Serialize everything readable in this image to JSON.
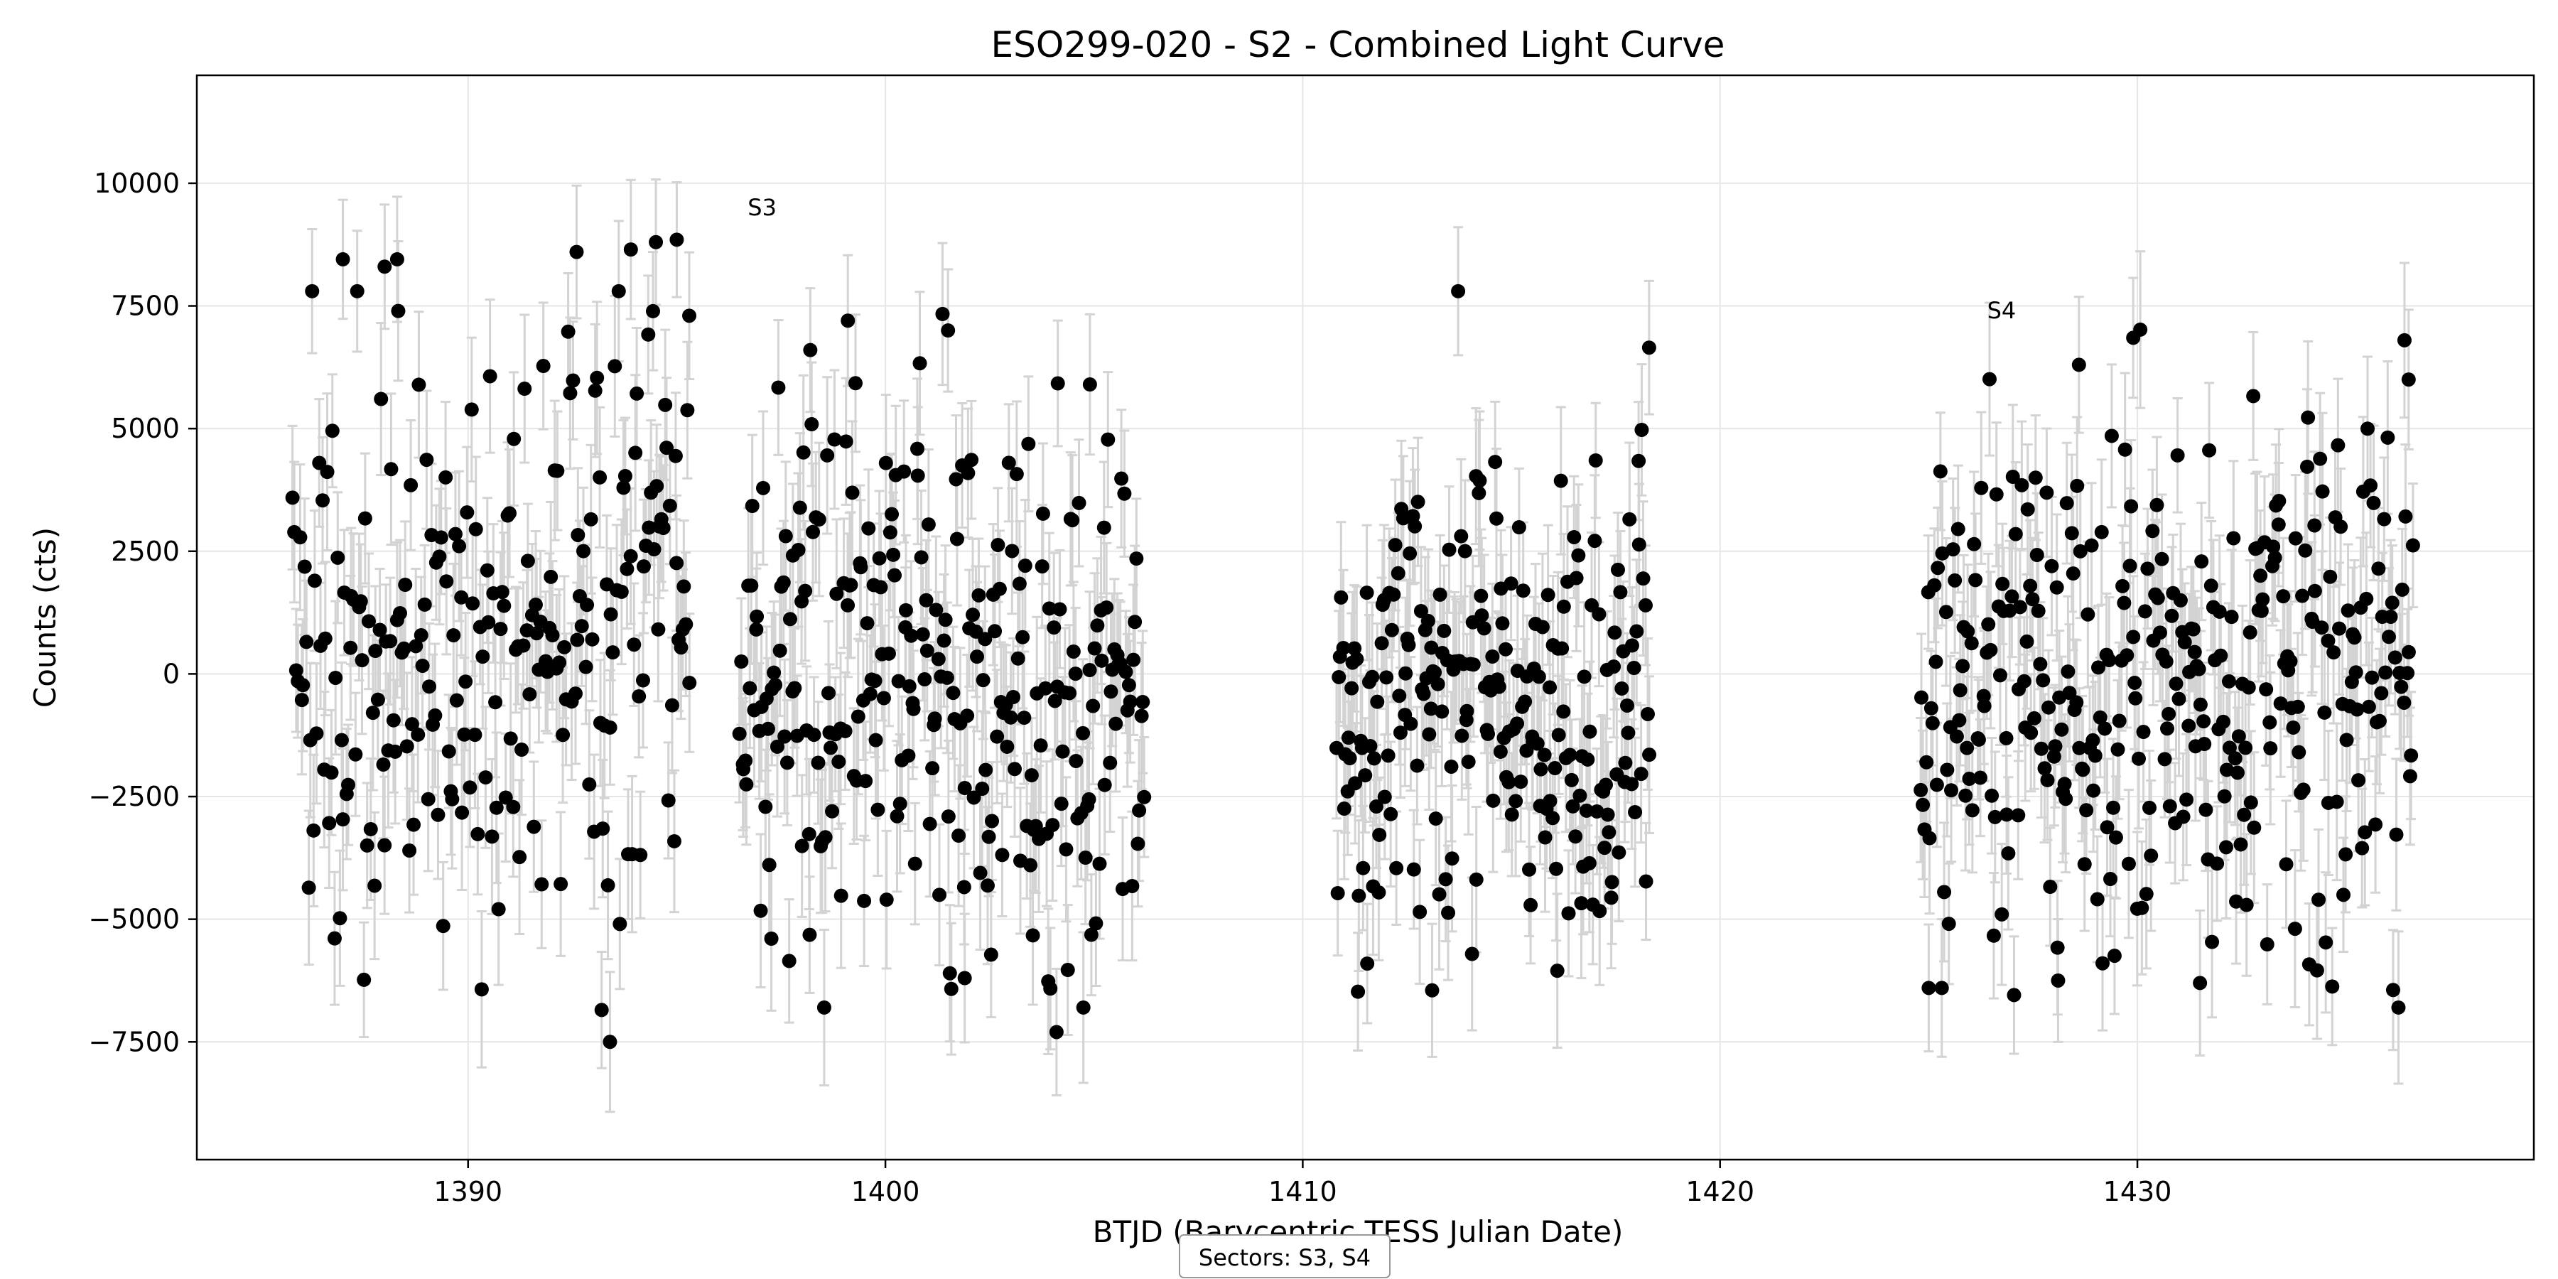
{
  "chart_data": {
    "type": "scatter",
    "title": "ESO299-020 - S2 - Combined Light Curve",
    "xlabel": "BTJD (Barycentric TESS Julian Date)",
    "ylabel": "Counts (cts)",
    "xlim": [
      1383.5,
      1439.5
    ],
    "ylim": [
      -9900,
      12200
    ],
    "x_ticks": [
      1390,
      1400,
      1410,
      1420,
      1430
    ],
    "y_ticks": [
      -7500,
      -5000,
      -2500,
      0,
      2500,
      5000,
      7500,
      10000
    ],
    "grid": true,
    "error_bar_color": "#d3d3d3",
    "marker_color": "#000000",
    "annotations": [
      {
        "text": "S3",
        "x": 1396.7,
        "y": 9350
      },
      {
        "text": "S4",
        "x": 1426.4,
        "y": 7250
      }
    ],
    "legend": {
      "text": "Sectors: S3, S4",
      "placement": "bottom-center"
    },
    "series": [
      {
        "segments": [
          {
            "x_start": 1385.8,
            "x_end": 1395.3,
            "mean_y": 600,
            "spread": 2900,
            "trend": 1400,
            "count": 230
          },
          {
            "x_start": 1396.5,
            "x_end": 1406.2,
            "mean_y": -300,
            "spread": 2700,
            "trend": -600,
            "count": 270
          },
          {
            "x_start": 1410.8,
            "x_end": 1418.3,
            "mean_y": -700,
            "spread": 2400,
            "trend": 0,
            "count": 230
          },
          {
            "x_start": 1424.8,
            "x_end": 1436.6,
            "mean_y": -200,
            "spread": 2600,
            "trend": 400,
            "count": 330
          }
        ],
        "notable_points": [
          {
            "x": 1387.0,
            "y": 8450
          },
          {
            "x": 1388.0,
            "y": 8300
          },
          {
            "x": 1388.3,
            "y": 8450
          },
          {
            "x": 1392.6,
            "y": 8600
          },
          {
            "x": 1393.9,
            "y": 8650
          },
          {
            "x": 1394.5,
            "y": 8800
          },
          {
            "x": 1395.0,
            "y": 8850
          },
          {
            "x": 1395.3,
            "y": 7300
          },
          {
            "x": 1393.4,
            "y": -7500
          },
          {
            "x": 1393.2,
            "y": -6850
          },
          {
            "x": 1398.2,
            "y": 6600
          },
          {
            "x": 1399.1,
            "y": 7200
          },
          {
            "x": 1401.5,
            "y": 7000
          },
          {
            "x": 1404.9,
            "y": 5900
          },
          {
            "x": 1404.1,
            "y": -7300
          },
          {
            "x": 1401.9,
            "y": -6200
          },
          {
            "x": 1418.3,
            "y": 6650
          },
          {
            "x": 1413.1,
            "y": -6450
          },
          {
            "x": 1416.1,
            "y": -6050
          },
          {
            "x": 1429.9,
            "y": 6850
          },
          {
            "x": 1428.6,
            "y": 6300
          },
          {
            "x": 1436.4,
            "y": 6800
          },
          {
            "x": 1436.5,
            "y": 6000
          },
          {
            "x": 1431.5,
            "y": -6300
          },
          {
            "x": 1428.1,
            "y": -6250
          },
          {
            "x": 1425.0,
            "y": -6400
          }
        ]
      }
    ]
  }
}
